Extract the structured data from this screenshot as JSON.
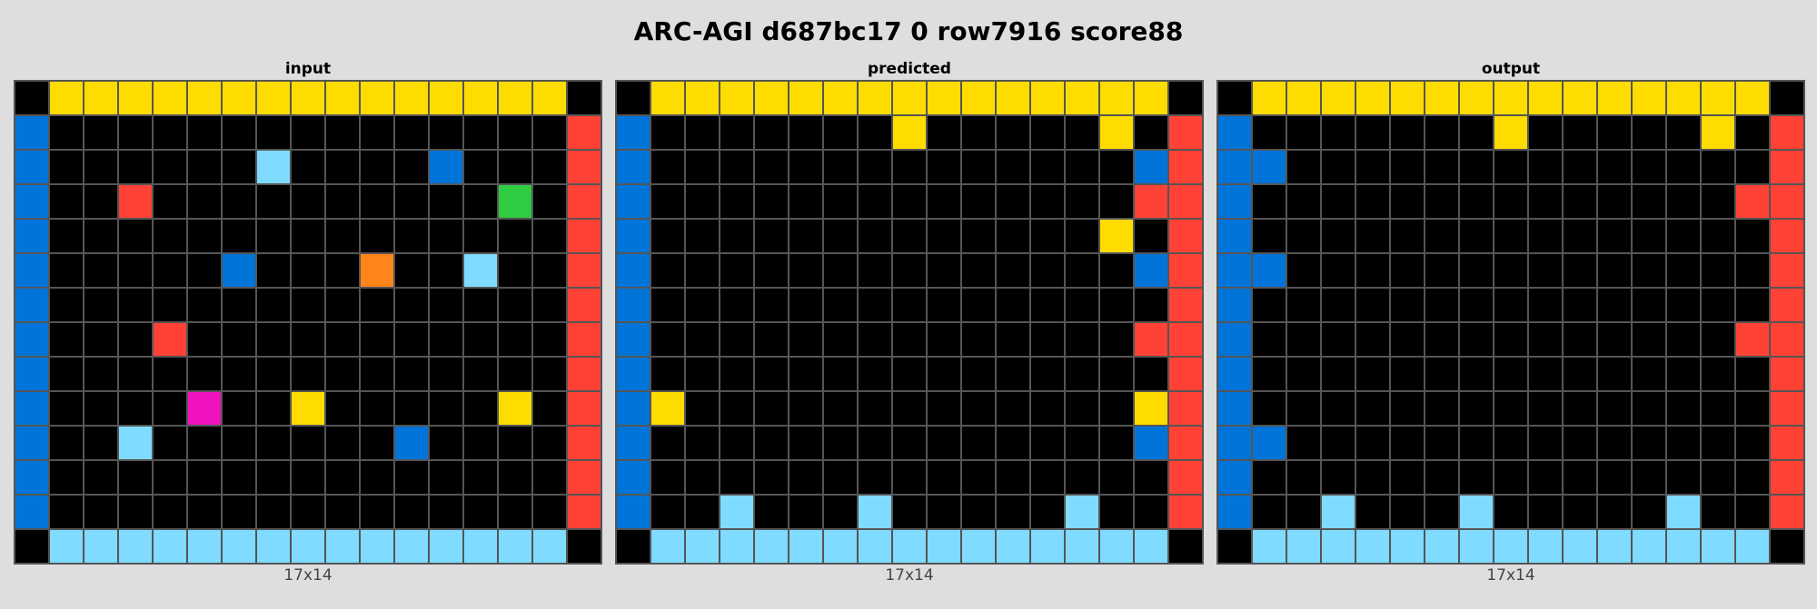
{
  "title": "ARC-AGI d687bc17 0 row7916 score88",
  "palette": {
    "0": "#000000",
    "1": "#0074d9",
    "2": "#ff4136",
    "3": "#2ecc40",
    "4": "#ffdc00",
    "5": "#aaaaaa",
    "6": "#f012be",
    "7": "#ff851b",
    "8": "#7fdbff",
    "9": "#870c25"
  },
  "panels": [
    {
      "label": "input",
      "caption": "17x14",
      "grid": [
        [
          0,
          4,
          4,
          4,
          4,
          4,
          4,
          4,
          4,
          4,
          4,
          4,
          4,
          4,
          4,
          4,
          0
        ],
        [
          1,
          0,
          0,
          0,
          0,
          0,
          0,
          0,
          0,
          0,
          0,
          0,
          0,
          0,
          0,
          0,
          2
        ],
        [
          1,
          0,
          0,
          0,
          0,
          0,
          0,
          8,
          0,
          0,
          0,
          0,
          1,
          0,
          0,
          0,
          2
        ],
        [
          1,
          0,
          0,
          2,
          0,
          0,
          0,
          0,
          0,
          0,
          0,
          0,
          0,
          0,
          3,
          0,
          2
        ],
        [
          1,
          0,
          0,
          0,
          0,
          0,
          0,
          0,
          0,
          0,
          0,
          0,
          0,
          0,
          0,
          0,
          2
        ],
        [
          1,
          0,
          0,
          0,
          0,
          0,
          1,
          0,
          0,
          0,
          7,
          0,
          0,
          8,
          0,
          0,
          2
        ],
        [
          1,
          0,
          0,
          0,
          0,
          0,
          0,
          0,
          0,
          0,
          0,
          0,
          0,
          0,
          0,
          0,
          2
        ],
        [
          1,
          0,
          0,
          0,
          2,
          0,
          0,
          0,
          0,
          0,
          0,
          0,
          0,
          0,
          0,
          0,
          2
        ],
        [
          1,
          0,
          0,
          0,
          0,
          0,
          0,
          0,
          0,
          0,
          0,
          0,
          0,
          0,
          0,
          0,
          2
        ],
        [
          1,
          0,
          0,
          0,
          0,
          6,
          0,
          0,
          4,
          0,
          0,
          0,
          0,
          0,
          4,
          0,
          2
        ],
        [
          1,
          0,
          0,
          8,
          0,
          0,
          0,
          0,
          0,
          0,
          0,
          1,
          0,
          0,
          0,
          0,
          2
        ],
        [
          1,
          0,
          0,
          0,
          0,
          0,
          0,
          0,
          0,
          0,
          0,
          0,
          0,
          0,
          0,
          0,
          2
        ],
        [
          1,
          0,
          0,
          0,
          0,
          0,
          0,
          0,
          0,
          0,
          0,
          0,
          0,
          0,
          0,
          0,
          2
        ],
        [
          0,
          8,
          8,
          8,
          8,
          8,
          8,
          8,
          8,
          8,
          8,
          8,
          8,
          8,
          8,
          8,
          0
        ]
      ]
    },
    {
      "label": "predicted",
      "caption": "17x14",
      "grid": [
        [
          0,
          4,
          4,
          4,
          4,
          4,
          4,
          4,
          4,
          4,
          4,
          4,
          4,
          4,
          4,
          4,
          0
        ],
        [
          1,
          0,
          0,
          0,
          0,
          0,
          0,
          0,
          4,
          0,
          0,
          0,
          0,
          0,
          4,
          0,
          2
        ],
        [
          1,
          0,
          0,
          0,
          0,
          0,
          0,
          0,
          0,
          0,
          0,
          0,
          0,
          0,
          0,
          1,
          2
        ],
        [
          1,
          0,
          0,
          0,
          0,
          0,
          0,
          0,
          0,
          0,
          0,
          0,
          0,
          0,
          0,
          2,
          2
        ],
        [
          1,
          0,
          0,
          0,
          0,
          0,
          0,
          0,
          0,
          0,
          0,
          0,
          0,
          0,
          4,
          0,
          2
        ],
        [
          1,
          0,
          0,
          0,
          0,
          0,
          0,
          0,
          0,
          0,
          0,
          0,
          0,
          0,
          0,
          1,
          2
        ],
        [
          1,
          0,
          0,
          0,
          0,
          0,
          0,
          0,
          0,
          0,
          0,
          0,
          0,
          0,
          0,
          0,
          2
        ],
        [
          1,
          0,
          0,
          0,
          0,
          0,
          0,
          0,
          0,
          0,
          0,
          0,
          0,
          0,
          0,
          2,
          2
        ],
        [
          1,
          0,
          0,
          0,
          0,
          0,
          0,
          0,
          0,
          0,
          0,
          0,
          0,
          0,
          0,
          0,
          2
        ],
        [
          1,
          4,
          0,
          0,
          0,
          0,
          0,
          0,
          0,
          0,
          0,
          0,
          0,
          0,
          0,
          4,
          2
        ],
        [
          1,
          0,
          0,
          0,
          0,
          0,
          0,
          0,
          0,
          0,
          0,
          0,
          0,
          0,
          0,
          1,
          2
        ],
        [
          1,
          0,
          0,
          0,
          0,
          0,
          0,
          0,
          0,
          0,
          0,
          0,
          0,
          0,
          0,
          0,
          2
        ],
        [
          1,
          0,
          0,
          8,
          0,
          0,
          0,
          8,
          0,
          0,
          0,
          0,
          0,
          8,
          0,
          0,
          2
        ],
        [
          0,
          8,
          8,
          8,
          8,
          8,
          8,
          8,
          8,
          8,
          8,
          8,
          8,
          8,
          8,
          8,
          0
        ]
      ]
    },
    {
      "label": "output",
      "caption": "17x14",
      "grid": [
        [
          0,
          4,
          4,
          4,
          4,
          4,
          4,
          4,
          4,
          4,
          4,
          4,
          4,
          4,
          4,
          4,
          0
        ],
        [
          1,
          0,
          0,
          0,
          0,
          0,
          0,
          0,
          4,
          0,
          0,
          0,
          0,
          0,
          4,
          0,
          2
        ],
        [
          1,
          1,
          0,
          0,
          0,
          0,
          0,
          0,
          0,
          0,
          0,
          0,
          0,
          0,
          0,
          0,
          2
        ],
        [
          1,
          0,
          0,
          0,
          0,
          0,
          0,
          0,
          0,
          0,
          0,
          0,
          0,
          0,
          0,
          2,
          2
        ],
        [
          1,
          0,
          0,
          0,
          0,
          0,
          0,
          0,
          0,
          0,
          0,
          0,
          0,
          0,
          0,
          0,
          2
        ],
        [
          1,
          1,
          0,
          0,
          0,
          0,
          0,
          0,
          0,
          0,
          0,
          0,
          0,
          0,
          0,
          0,
          2
        ],
        [
          1,
          0,
          0,
          0,
          0,
          0,
          0,
          0,
          0,
          0,
          0,
          0,
          0,
          0,
          0,
          0,
          2
        ],
        [
          1,
          0,
          0,
          0,
          0,
          0,
          0,
          0,
          0,
          0,
          0,
          0,
          0,
          0,
          0,
          2,
          2
        ],
        [
          1,
          0,
          0,
          0,
          0,
          0,
          0,
          0,
          0,
          0,
          0,
          0,
          0,
          0,
          0,
          0,
          2
        ],
        [
          1,
          0,
          0,
          0,
          0,
          0,
          0,
          0,
          0,
          0,
          0,
          0,
          0,
          0,
          0,
          0,
          2
        ],
        [
          1,
          1,
          0,
          0,
          0,
          0,
          0,
          0,
          0,
          0,
          0,
          0,
          0,
          0,
          0,
          0,
          2
        ],
        [
          1,
          0,
          0,
          0,
          0,
          0,
          0,
          0,
          0,
          0,
          0,
          0,
          0,
          0,
          0,
          0,
          2
        ],
        [
          1,
          0,
          0,
          8,
          0,
          0,
          0,
          8,
          0,
          0,
          0,
          0,
          0,
          8,
          0,
          0,
          2
        ],
        [
          0,
          8,
          8,
          8,
          8,
          8,
          8,
          8,
          8,
          8,
          8,
          8,
          8,
          8,
          8,
          8,
          0
        ]
      ]
    }
  ]
}
